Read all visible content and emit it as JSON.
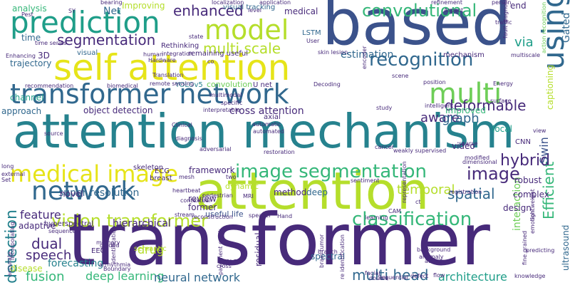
{
  "palette": {
    "dark_purple": "#472a7a",
    "navy": "#3b528b",
    "steel": "#31688e",
    "teal": "#26828e",
    "sea": "#1f9e89",
    "green": "#35b779",
    "lime": "#6ece58",
    "yellowgreen": "#b5de2b",
    "yellow": "#e6e419",
    "deep": "#440154"
  },
  "words": [
    {
      "id": "transformer",
      "text": "transformer",
      "color": "#472a7a"
    },
    {
      "id": "attention-mechanism",
      "text": "attention mechanism",
      "color": "#26828e"
    },
    {
      "id": "based",
      "text": "based",
      "color": "#3b528b"
    },
    {
      "id": "attention",
      "text": "attention",
      "color": "#b5de2b"
    },
    {
      "id": "self-attention",
      "text": "self attention",
      "color": "#e6e419"
    },
    {
      "id": "transformer-network",
      "text": "transformer network",
      "color": "#31688e"
    },
    {
      "id": "prediction",
      "text": "prediction",
      "color": "#1f9e89"
    },
    {
      "id": "model",
      "text": "model",
      "color": "#b5de2b"
    },
    {
      "id": "multi",
      "text": "multi",
      "color": "#6ece58"
    },
    {
      "id": "using",
      "text": "using",
      "color": "#31688e"
    },
    {
      "id": "medical-image",
      "text": "medical image",
      "color": "#e6e419"
    },
    {
      "id": "image-segmentation",
      "text": "image segmentation",
      "color": "#35b779"
    },
    {
      "id": "network",
      "text": "network",
      "color": "#31688e"
    },
    {
      "id": "recognition",
      "text": "recognition",
      "color": "#31688e"
    },
    {
      "id": "vision-transformer",
      "text": "vision transformer",
      "color": "#b5de2b"
    },
    {
      "id": "classification",
      "text": "classification",
      "color": "#35b779"
    },
    {
      "id": "convolutional",
      "text": "convolutional",
      "color": "#35b779"
    },
    {
      "id": "enhanced",
      "text": "enhanced",
      "color": "#472a7a"
    },
    {
      "id": "segmentation",
      "text": "segmentation",
      "color": "#472a7a"
    },
    {
      "id": "multi-scale",
      "text": "multi scale",
      "color": "#b5de2b"
    },
    {
      "id": "image",
      "text": "image",
      "color": "#472a7a"
    },
    {
      "id": "detection",
      "text": "detection",
      "color": "#26828e"
    },
    {
      "id": "efficient",
      "text": "Efficient",
      "color": "#35b779"
    },
    {
      "id": "hybrid",
      "text": "hybrid",
      "color": "#472a7a"
    },
    {
      "id": "deformable",
      "text": "deformable",
      "color": "#472a7a"
    },
    {
      "id": "aware",
      "text": "aware",
      "color": "#472a7a"
    },
    {
      "id": "graph",
      "text": "graph",
      "color": "#31688e"
    },
    {
      "id": "spatial",
      "text": "spatial",
      "color": "#31688e"
    },
    {
      "id": "temporal",
      "text": "temporal",
      "color": "#b5de2b"
    },
    {
      "id": "feature",
      "text": "feature",
      "color": "#472a7a"
    },
    {
      "id": "dual",
      "text": "dual",
      "color": "#472a7a"
    },
    {
      "id": "speech",
      "text": "speech",
      "color": "#472a7a"
    },
    {
      "id": "fusion",
      "text": "fusion",
      "color": "#35b779"
    },
    {
      "id": "deep-learning",
      "text": "deep learning",
      "color": "#35b779"
    },
    {
      "id": "neural-network",
      "text": "neural network",
      "color": "#31688e"
    },
    {
      "id": "multi-head",
      "text": "multi head",
      "color": "#31688e"
    },
    {
      "id": "architecture",
      "text": "architecture",
      "color": "#1f9e89"
    },
    {
      "id": "cross-attention",
      "text": "cross attention",
      "color": "#472a7a"
    },
    {
      "id": "super-resolution",
      "text": "super resolution",
      "color": "#31688e"
    },
    {
      "id": "hierarchical",
      "text": "hierarchical",
      "color": "#472a7a"
    },
    {
      "id": "via",
      "text": "via",
      "color": "#1f9e89"
    },
    {
      "id": "gated",
      "text": "Gated",
      "color": "#31688e"
    },
    {
      "id": "end",
      "text": "end",
      "color": "#472a7a"
    },
    {
      "id": "swin",
      "text": "Swin",
      "color": "#3b528b"
    },
    {
      "id": "estimation",
      "text": "estimation",
      "color": "#31688e"
    },
    {
      "id": "net",
      "text": "Net",
      "color": "#31688e"
    },
    {
      "id": "improving",
      "text": "Improving",
      "color": "#b5de2b"
    },
    {
      "id": "analysis",
      "text": "analysis",
      "color": "#35b779"
    },
    {
      "id": "time",
      "text": "time",
      "color": "#31688e"
    },
    {
      "id": "3d",
      "text": "3D",
      "color": "#472a7a"
    },
    {
      "id": "trajectory",
      "text": "trajectory",
      "color": "#31688e"
    },
    {
      "id": "channel",
      "text": "channel",
      "color": "#1f9e89"
    },
    {
      "id": "disease",
      "text": "disease",
      "color": "#b5de2b"
    },
    {
      "id": "approach",
      "text": "approach",
      "color": "#31688e"
    },
    {
      "id": "object-detection",
      "text": "object detection",
      "color": "#472a7a"
    },
    {
      "id": "improved",
      "text": "Improved",
      "color": "#35b779"
    },
    {
      "id": "video",
      "text": "video",
      "color": "#472a7a"
    },
    {
      "id": "local",
      "text": "local",
      "color": "#1f9e89"
    },
    {
      "id": "interaction",
      "text": "interaction",
      "color": "#6ece58"
    },
    {
      "id": "robust",
      "text": "robust",
      "color": "#472a7a"
    },
    {
      "id": "complex",
      "text": "complex",
      "color": "#472a7a"
    },
    {
      "id": "design",
      "text": "design",
      "color": "#472a7a"
    },
    {
      "id": "drug",
      "text": "drug",
      "color": "#b5de2b"
    },
    {
      "id": "method",
      "text": "method",
      "color": "#472a7a"
    },
    {
      "id": "deep",
      "text": "deep",
      "color": "#31688e"
    },
    {
      "id": "novel",
      "text": "novel",
      "color": "#472a7a"
    },
    {
      "id": "adaptive",
      "text": "adaptive",
      "color": "#472a7a"
    },
    {
      "id": "forecasting",
      "text": "forecasting",
      "color": "#26828e"
    },
    {
      "id": "dynamic",
      "text": "dynamic",
      "color": "#b5de2b"
    },
    {
      "id": "framework",
      "text": "framework",
      "color": "#472a7a"
    },
    {
      "id": "review",
      "text": "review",
      "color": "#472a7a"
    },
    {
      "id": "former",
      "text": "former",
      "color": "#472a7a"
    },
    {
      "id": "useful-life",
      "text": "useful life",
      "color": "#3b528b"
    },
    {
      "id": "residual",
      "text": "residual",
      "color": "#472a7a"
    },
    {
      "id": "spectral",
      "text": "spectral",
      "color": "#31688e"
    },
    {
      "id": "visual",
      "text": "visual",
      "color": "#31688e"
    },
    {
      "id": "medical",
      "text": "medical",
      "color": "#472a7a"
    },
    {
      "id": "yolov5",
      "text": "YOLOv5",
      "color": "#26828e"
    },
    {
      "id": "convolution",
      "text": "convolution",
      "color": "#6ece58"
    },
    {
      "id": "u-net",
      "text": "U net",
      "color": "#472a7a"
    },
    {
      "id": "lstm",
      "text": "LSTM",
      "color": "#31688e"
    },
    {
      "id": "visual-tracking",
      "text": "visual tracking",
      "color": "#31688e"
    },
    {
      "id": "rethinking",
      "text": "Rethinking",
      "color": "#472a7a"
    },
    {
      "id": "remaining-useful",
      "text": "remaining useful",
      "color": "#472a7a"
    },
    {
      "id": "mechanism",
      "text": "mechanism",
      "color": "#472a7a"
    },
    {
      "id": "ultrasound",
      "text": "ultrasound",
      "color": "#31688e"
    },
    {
      "id": "captioning",
      "text": "captioning",
      "color": "#b5de2b"
    },
    {
      "id": "cnn",
      "text": "CNN",
      "color": "#472a7a"
    },
    {
      "id": "hyperspectral",
      "text": "hyperspectral",
      "color": "#472a7a"
    },
    {
      "id": "axial",
      "text": "axial",
      "color": "#472a7a"
    },
    {
      "id": "skeleton",
      "text": "skeleton",
      "color": "#472a7a"
    },
    {
      "id": "ecg",
      "text": "ECG",
      "color": "#472a7a"
    },
    {
      "id": "eeg",
      "text": "EEG",
      "color": "#472a7a"
    },
    {
      "id": "semantic",
      "text": "semantic",
      "color": "#b5de2b"
    },
    {
      "id": "breast",
      "text": "breast",
      "color": "#472a7a"
    },
    {
      "id": "localization",
      "text": "localization",
      "color": "#472a7a"
    },
    {
      "id": "bearing",
      "text": "bearing",
      "color": "#472a7a"
    },
    {
      "id": "application",
      "text": "application",
      "color": "#472a7a"
    },
    {
      "id": "refinement",
      "text": "refinement",
      "color": "#472a7a"
    },
    {
      "id": "person",
      "text": "person",
      "color": "#472a7a"
    },
    {
      "id": "aspect",
      "text": "Aspect",
      "color": "#472a7a"
    },
    {
      "id": "traffic",
      "text": "traffic",
      "color": "#472a7a"
    },
    {
      "id": "multiscale",
      "text": "multiscale",
      "color": "#472a7a"
    },
    {
      "id": "action-recognition",
      "text": "action recognition",
      "color": "#6ece58"
    },
    {
      "id": "fault-diagnosis",
      "text": "fault diagnosis",
      "color": "#472a7a"
    },
    {
      "id": "position",
      "text": "position",
      "color": "#472a7a"
    },
    {
      "id": "intelligent",
      "text": "intelligent",
      "color": "#472a7a"
    },
    {
      "id": "surface",
      "text": "surface",
      "color": "#472a7a"
    },
    {
      "id": "sparse",
      "text": "sparse",
      "color": "#472a7a"
    },
    {
      "id": "energy",
      "text": "Energy",
      "color": "#472a7a"
    },
    {
      "id": "view",
      "text": "view",
      "color": "#472a7a"
    },
    {
      "id": "multimodal",
      "text": "multimodal",
      "color": "#472a7a"
    },
    {
      "id": "interpretable",
      "text": "interpretable",
      "color": "#472a7a"
    },
    {
      "id": "specific",
      "text": "specific",
      "color": "#472a7a"
    },
    {
      "id": "automatic",
      "text": "automatic",
      "color": "#472a7a"
    },
    {
      "id": "automated",
      "text": "automated",
      "color": "#472a7a"
    },
    {
      "id": "clinical",
      "text": "Clinical",
      "color": "#472a7a"
    },
    {
      "id": "diagnosis",
      "text": "diagnosis",
      "color": "#472a7a"
    },
    {
      "id": "adversarial",
      "text": "adversarial",
      "color": "#472a7a"
    },
    {
      "id": "cancer",
      "text": "cancer",
      "color": "#472a7a"
    },
    {
      "id": "weakly-supervised",
      "text": "weakly supervised",
      "color": "#472a7a"
    },
    {
      "id": "restoration",
      "text": "restoration",
      "color": "#472a7a"
    },
    {
      "id": "modified",
      "text": "modified",
      "color": "#472a7a"
    },
    {
      "id": "dimensional",
      "text": "dimensional",
      "color": "#472a7a"
    },
    {
      "id": "sentiment",
      "text": "sentiment",
      "color": "#472a7a"
    },
    {
      "id": "registration",
      "text": "registration",
      "color": "#472a7a"
    },
    {
      "id": "facial",
      "text": "facial",
      "color": "#472a7a"
    },
    {
      "id": "emotion",
      "text": "emotion",
      "color": "#472a7a"
    },
    {
      "id": "double",
      "text": "double",
      "color": "#472a7a"
    },
    {
      "id": "reconstruction",
      "text": "reconstruction",
      "color": "#472a7a"
    },
    {
      "id": "background",
      "text": "background",
      "color": "#472a7a"
    },
    {
      "id": "activity",
      "text": "activity",
      "color": "#472a7a"
    },
    {
      "id": "anomaly",
      "text": "anomaly",
      "color": "#472a7a"
    },
    {
      "id": "predicting",
      "text": "predicting",
      "color": "#472a7a"
    },
    {
      "id": "knowledge",
      "text": "knowledge",
      "color": "#472a7a"
    },
    {
      "id": "fine-grained",
      "text": "fine grained",
      "color": "#472a7a"
    },
    {
      "id": "flow",
      "text": "flow",
      "color": "#472a7a"
    },
    {
      "id": "defect",
      "text": "defect",
      "color": "#472a7a"
    },
    {
      "id": "re-identification",
      "text": "re identification",
      "color": "#472a7a"
    },
    {
      "id": "sequential",
      "text": "Sequential",
      "color": "#472a7a"
    },
    {
      "id": "branch",
      "text": "branch",
      "color": "#472a7a"
    },
    {
      "id": "guided",
      "text": "guided",
      "color": "#472a7a"
    },
    {
      "id": "memory",
      "text": "memory",
      "color": "#472a7a"
    },
    {
      "id": "yolo",
      "text": "YOLO",
      "color": "#472a7a"
    },
    {
      "id": "cross",
      "text": "cross",
      "color": "#472a7a"
    },
    {
      "id": "arrhythmia",
      "text": "arrhythmia",
      "color": "#472a7a"
    },
    {
      "id": "boundary",
      "text": "Boundary",
      "color": "#472a7a"
    },
    {
      "id": "identification",
      "text": "identification",
      "color": "#472a7a"
    },
    {
      "id": "speaker",
      "text": "speaker",
      "color": "#472a7a"
    },
    {
      "id": "stream",
      "text": "stream",
      "color": "#472a7a"
    },
    {
      "id": "contextual",
      "text": "contextual",
      "color": "#472a7a"
    },
    {
      "id": "pedestrian",
      "text": "pedestrian",
      "color": "#472a7a"
    },
    {
      "id": "mri",
      "text": "MRI",
      "color": "#472a7a"
    },
    {
      "id": "heartbeat",
      "text": "heartbeat",
      "color": "#472a7a"
    },
    {
      "id": "mesh",
      "text": "mesh",
      "color": "#472a7a"
    },
    {
      "id": "two",
      "text": "two",
      "color": "#472a7a"
    },
    {
      "id": "external",
      "text": "external",
      "color": "#472a7a"
    },
    {
      "id": "sequence",
      "text": "sequence",
      "color": "#472a7a"
    },
    {
      "id": "long",
      "text": "long",
      "color": "#472a7a"
    },
    {
      "id": "source",
      "text": "source",
      "color": "#472a7a"
    },
    {
      "id": "incorporating",
      "text": "incorporating",
      "color": "#472a7a"
    },
    {
      "id": "accurate",
      "text": "accurate",
      "color": "#472a7a"
    },
    {
      "id": "hand",
      "text": "Hand",
      "color": "#472a7a"
    },
    {
      "id": "learning",
      "text": "learning",
      "color": "#472a7a"
    },
    {
      "id": "cam",
      "text": "CAM",
      "color": "#472a7a"
    },
    {
      "id": "representation",
      "text": "representation",
      "color": "#472a7a"
    },
    {
      "id": "scene",
      "text": "scene",
      "color": "#472a7a"
    },
    {
      "id": "study",
      "text": "study",
      "color": "#472a7a"
    },
    {
      "id": "decoding",
      "text": "Decoding",
      "color": "#472a7a"
    },
    {
      "id": "skin-lesion",
      "text": "skin lesion",
      "color": "#472a7a"
    },
    {
      "id": "encoder",
      "text": "encoder",
      "color": "#472a7a"
    },
    {
      "id": "user",
      "text": "User",
      "color": "#472a7a"
    },
    {
      "id": "state",
      "text": "state",
      "color": "#472a7a"
    },
    {
      "id": "hardware",
      "text": "Hardware",
      "color": "#472a7a"
    },
    {
      "id": "human",
      "text": "human",
      "color": "#472a7a"
    },
    {
      "id": "integration",
      "text": "integration",
      "color": "#472a7a"
    },
    {
      "id": "translation",
      "text": "Translation",
      "color": "#472a7a"
    },
    {
      "id": "remote-sensing",
      "text": "remote sensing",
      "color": "#472a7a"
    },
    {
      "id": "biomedical",
      "text": "biomedical",
      "color": "#472a7a"
    },
    {
      "id": "recommendation",
      "text": "recommendation",
      "color": "#472a7a"
    },
    {
      "id": "time-series",
      "text": "time series",
      "color": "#472a7a"
    },
    {
      "id": "enhancing",
      "text": "Enhancing",
      "color": "#472a7a"
    },
    {
      "id": "pest",
      "text": "Pest",
      "color": "#472a7a"
    },
    {
      "id": "sy",
      "text": "SY",
      "color": "#472a7a"
    },
    {
      "id": "level",
      "text": "level",
      "color": "#472a7a"
    },
    {
      "id": "co",
      "text": "co",
      "color": "#472a7a"
    },
    {
      "id": "lightweight",
      "text": "lightweight",
      "color": "#472a7a"
    },
    {
      "id": "ct",
      "text": "ct",
      "color": "#472a7a"
    },
    {
      "id": "brain-tumor",
      "text": "brain tumor",
      "color": "#472a7a"
    },
    {
      "id": "pavement-crack",
      "text": "pavement crack",
      "color": "#472a7a"
    },
    {
      "id": "set",
      "text": "Set",
      "color": "#472a7a"
    }
  ]
}
